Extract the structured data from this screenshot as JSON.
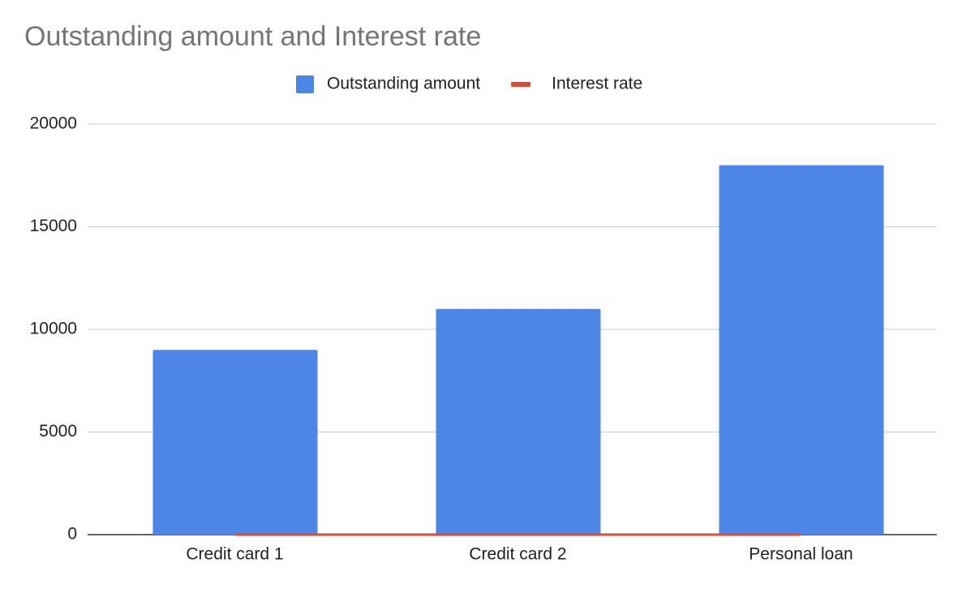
{
  "chart_data": {
    "type": "bar",
    "title": "Outstanding amount and Interest rate",
    "categories": [
      "Credit card 1",
      "Credit card 2",
      "Personal loan"
    ],
    "series": [
      {
        "name": "Outstanding amount",
        "type": "bar",
        "color": "#4e86e8",
        "values": [
          9000,
          11000,
          18000
        ]
      },
      {
        "name": "Interest rate",
        "type": "line",
        "color": "#dc4a38",
        "values": [
          0,
          0,
          0
        ]
      }
    ],
    "ylim": [
      0,
      20000
    ],
    "yticks": [
      0,
      5000,
      10000,
      15000,
      20000
    ],
    "grid": true,
    "legend": "top"
  }
}
